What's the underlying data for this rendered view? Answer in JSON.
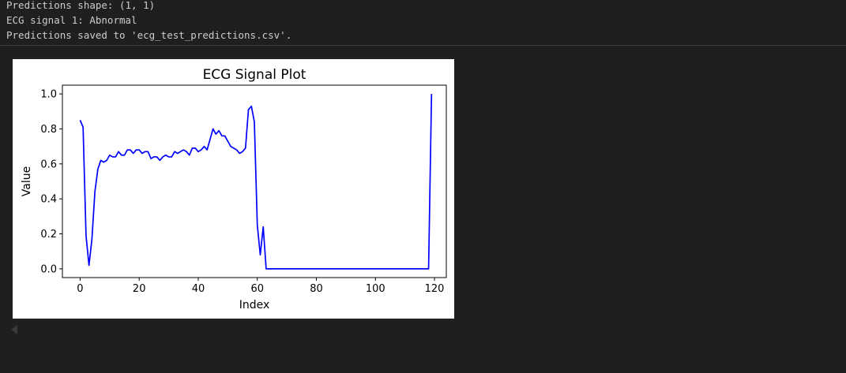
{
  "console": {
    "lines": [
      "Predictions shape: (1, 1)",
      "ECG signal 1: Abnormal",
      "Predictions saved to 'ecg_test_predictions.csv'."
    ]
  },
  "collapse_icon": "triangle-left-icon",
  "colors": {
    "background": "#1f1f1f",
    "console_text": "#cccccc",
    "line": "#0000ff"
  },
  "chart_data": {
    "type": "line",
    "title": "ECG Signal Plot",
    "xlabel": "Index",
    "ylabel": "Value",
    "xlim": [
      -6,
      124
    ],
    "ylim": [
      -0.05,
      1.05
    ],
    "xticks": [
      0,
      20,
      40,
      60,
      80,
      100,
      120
    ],
    "xtick_labels": [
      "0",
      "20",
      "40",
      "60",
      "80",
      "100",
      "120"
    ],
    "yticks": [
      0.0,
      0.2,
      0.4,
      0.6,
      0.8,
      1.0
    ],
    "ytick_labels": [
      "0.0",
      "0.2",
      "0.4",
      "0.6",
      "0.8",
      "1.0"
    ],
    "grid": false,
    "series": [
      {
        "color": "#0000ff",
        "x": [
          0,
          1,
          2,
          3,
          4,
          5,
          6,
          7,
          8,
          9,
          10,
          11,
          12,
          13,
          14,
          15,
          16,
          17,
          18,
          19,
          20,
          21,
          22,
          23,
          24,
          25,
          26,
          27,
          28,
          29,
          30,
          31,
          32,
          33,
          34,
          35,
          36,
          37,
          38,
          39,
          40,
          41,
          42,
          43,
          44,
          45,
          46,
          47,
          48,
          49,
          50,
          51,
          52,
          53,
          54,
          55,
          56,
          57,
          58,
          59,
          60,
          61,
          62,
          63,
          118,
          119
        ],
        "y": [
          0.85,
          0.81,
          0.19,
          0.02,
          0.17,
          0.44,
          0.57,
          0.62,
          0.61,
          0.62,
          0.65,
          0.64,
          0.64,
          0.67,
          0.65,
          0.65,
          0.68,
          0.68,
          0.66,
          0.68,
          0.68,
          0.66,
          0.67,
          0.67,
          0.63,
          0.64,
          0.64,
          0.62,
          0.64,
          0.65,
          0.64,
          0.64,
          0.67,
          0.66,
          0.67,
          0.68,
          0.67,
          0.65,
          0.69,
          0.69,
          0.67,
          0.68,
          0.7,
          0.68,
          0.74,
          0.8,
          0.77,
          0.79,
          0.76,
          0.76,
          0.73,
          0.7,
          0.69,
          0.68,
          0.66,
          0.67,
          0.69,
          0.91,
          0.93,
          0.84,
          0.25,
          0.08,
          0.24,
          0.0,
          0.0,
          1.0
        ]
      }
    ]
  }
}
